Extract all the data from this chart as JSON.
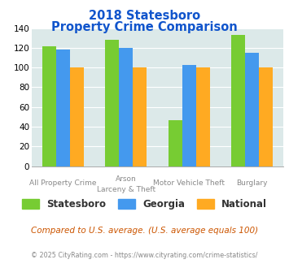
{
  "title_line1": "2018 Statesboro",
  "title_line2": "Property Crime Comparison",
  "cat_labels_row1": [
    "All Property Crime",
    "Arson",
    "Motor Vehicle Theft",
    "Burglary"
  ],
  "cat_labels_row2": [
    "",
    "Larceny & Theft",
    "",
    ""
  ],
  "statesboro": [
    122,
    128,
    47,
    133
  ],
  "georgia": [
    118,
    120,
    103,
    115
  ],
  "national": [
    100,
    100,
    100,
    100
  ],
  "colors": {
    "statesboro": "#77cc33",
    "georgia": "#4499ee",
    "national": "#ffaa22"
  },
  "ylim": [
    0,
    140
  ],
  "yticks": [
    0,
    20,
    40,
    60,
    80,
    100,
    120,
    140
  ],
  "background_color": "#dce9e9",
  "title_color": "#1155cc",
  "footer_text": "Compared to U.S. average. (U.S. average equals 100)",
  "footer_color": "#cc5500",
  "copyright_text": "© 2025 CityRating.com - https://www.cityrating.com/crime-statistics/",
  "copyright_color": "#888888",
  "legend_labels": [
    "Statesboro",
    "Georgia",
    "National"
  ]
}
